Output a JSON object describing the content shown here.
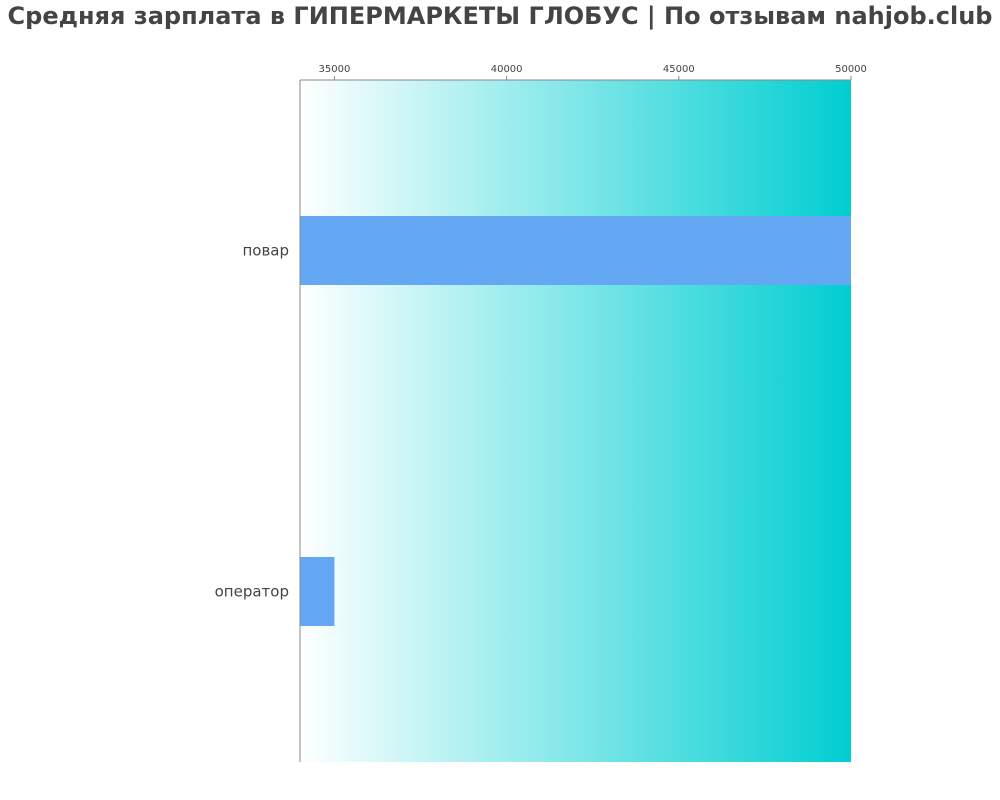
{
  "chart_data": {
    "type": "bar",
    "orientation": "horizontal",
    "title": "Средняя зарплата в ГИПЕРМАРКЕТЫ ГЛОБУС | По отзывам nahjob.club",
    "categories": [
      "повар",
      "оператор"
    ],
    "values": [
      50000,
      35000
    ],
    "xlim": [
      34000,
      50000
    ],
    "xticks": [
      35000,
      40000,
      45000,
      50000
    ],
    "xtick_labels": [
      "35000",
      "40000",
      "45000",
      "50000"
    ],
    "xaxis_position": "top",
    "xlabel": "",
    "ylabel": "",
    "grid": false,
    "legend": "none"
  },
  "colors": {
    "bar": "#64a8f4",
    "background_gradient_start": "#ffffff",
    "background_gradient_end": "#00ced1",
    "axis": "#888888",
    "text": "#444444"
  }
}
